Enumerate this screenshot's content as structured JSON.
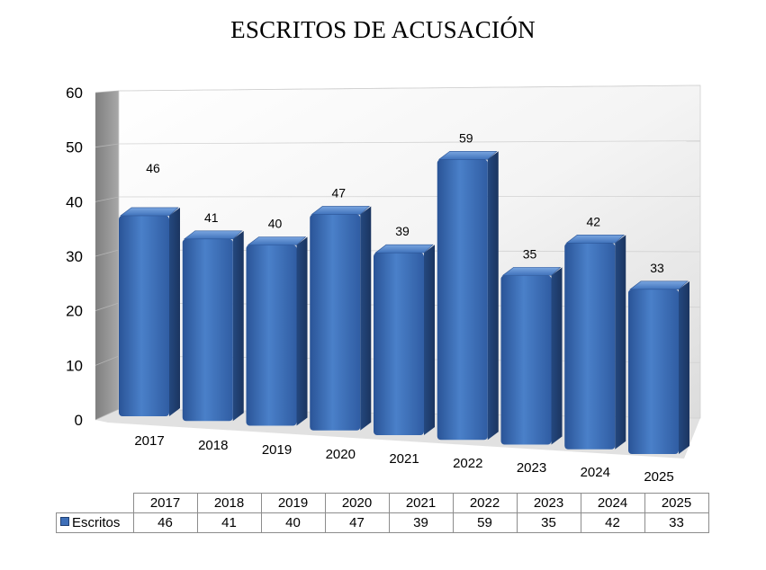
{
  "chart_data": {
    "type": "bar",
    "title": "ESCRITOS DE ACUSACIÓN",
    "xlabel": "",
    "ylabel": "",
    "categories": [
      "2017",
      "2018",
      "2019",
      "2020",
      "2021",
      "2022",
      "2023",
      "2024",
      "2025"
    ],
    "series": [
      {
        "name": "Escritos",
        "values": [
          46,
          41,
          40,
          47,
          39,
          59,
          35,
          42,
          33
        ],
        "color": "#3e6fb8"
      }
    ],
    "ylim": [
      0,
      60
    ],
    "yticks": [
      "0",
      "10",
      "20",
      "30",
      "40",
      "50",
      "60"
    ],
    "grid": true,
    "data_labels": true,
    "legend": "data-table-below",
    "style": "3d-perspective-columns"
  }
}
